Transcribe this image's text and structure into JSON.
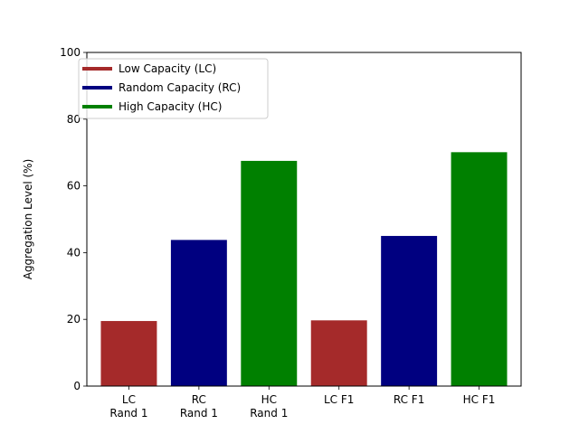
{
  "chart_data": {
    "type": "bar",
    "title": "",
    "xlabel": "",
    "ylabel": "Aggregation Level (%)",
    "ylim": [
      0,
      100
    ],
    "yticks": [
      0,
      20,
      40,
      60,
      80,
      100
    ],
    "grid": false,
    "legend_position": "top-left",
    "categories": [
      {
        "lines": [
          "LC",
          "Rand 1"
        ],
        "value": 19.5,
        "group": "Low Capacity (LC)"
      },
      {
        "lines": [
          "RC",
          "Rand 1"
        ],
        "value": 43.8,
        "group": "Random Capacity (RC)"
      },
      {
        "lines": [
          "HC",
          "Rand 1"
        ],
        "value": 67.5,
        "group": "High Capacity (HC)"
      },
      {
        "lines": [
          "LC F1"
        ],
        "value": 19.7,
        "group": "Low Capacity (LC)"
      },
      {
        "lines": [
          "RC F1"
        ],
        "value": 45.0,
        "group": "Random Capacity (RC)"
      },
      {
        "lines": [
          "HC F1"
        ],
        "value": 70.1,
        "group": "High Capacity (HC)"
      }
    ],
    "legend": [
      {
        "label": "Low Capacity (LC)",
        "color": "#a52a2a"
      },
      {
        "label": "Random Capacity (RC)",
        "color": "#000080"
      },
      {
        "label": "High Capacity (HC)",
        "color": "#008000"
      }
    ]
  }
}
